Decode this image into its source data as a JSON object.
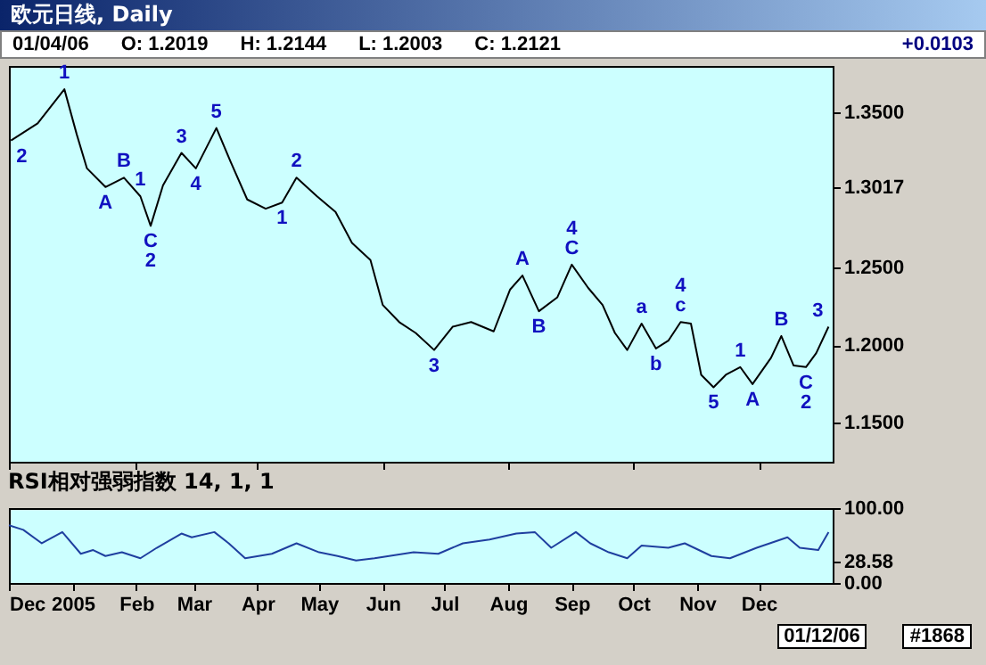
{
  "chart_data": [
    {
      "type": "line",
      "title": "欧元日线, Daily",
      "annotations": [
        "01/04/06",
        "O: 1.2019",
        "H: 1.2144",
        "L: 1.2003",
        "C: 1.2121",
        "+0.0103",
        {
          "text": "1",
          "x": "2004-12-28",
          "y": 1.365
        },
        {
          "text": "2",
          "x": "2004-12-02",
          "y": 1.332
        },
        {
          "text": "A",
          "x": "2005-01-17",
          "y": 1.302
        },
        {
          "text": "B",
          "x": "2005-01-26",
          "y": 1.308
        },
        {
          "text": "1",
          "x": "2005-02-03",
          "y": 1.296
        },
        {
          "text": "C",
          "x": "2005-02-08",
          "y": 1.277
        },
        {
          "text": "2",
          "x": "2005-02-08",
          "y": 1.277
        },
        {
          "text": "3",
          "x": "2005-02-23",
          "y": 1.324
        },
        {
          "text": "4",
          "x": "2005-03-02",
          "y": 1.314
        },
        {
          "text": "5",
          "x": "2005-03-12",
          "y": 1.34
        },
        {
          "text": "1",
          "x": "2005-04-13",
          "y": 1.292
        },
        {
          "text": "2",
          "x": "2005-04-20",
          "y": 1.308
        },
        {
          "text": "3",
          "x": "2005-06-26",
          "y": 1.197
        },
        {
          "text": "A",
          "x": "2005-08-08",
          "y": 1.245
        },
        {
          "text": "B",
          "x": "2005-08-16",
          "y": 1.222
        },
        {
          "text": "C",
          "x": "2005-09-01",
          "y": 1.252
        },
        {
          "text": "4",
          "x": "2005-09-01",
          "y": 1.252
        },
        {
          "text": "a",
          "x": "2005-10-05",
          "y": 1.214
        },
        {
          "text": "b",
          "x": "2005-10-12",
          "y": 1.198
        },
        {
          "text": "c",
          "x": "2005-10-24",
          "y": 1.215
        },
        {
          "text": "4",
          "x": "2005-10-24",
          "y": 1.215
        },
        {
          "text": "5",
          "x": "2005-11-09",
          "y": 1.173
        },
        {
          "text": "1",
          "x": "2005-11-22",
          "y": 1.186
        },
        {
          "text": "A",
          "x": "2005-11-28",
          "y": 1.175
        },
        {
          "text": "B",
          "x": "2005-12-12",
          "y": 1.206
        },
        {
          "text": "C",
          "x": "2005-12-24",
          "y": 1.186
        },
        {
          "text": "2",
          "x": "2005-12-24",
          "y": 1.186
        },
        {
          "text": "3",
          "x": "2006-01-04",
          "y": 1.212
        }
      ],
      "x": [
        "2004-12-02",
        "2004-12-15",
        "2004-12-28",
        "2005-01-03",
        "2005-01-08",
        "2005-01-17",
        "2005-01-26",
        "2005-02-03",
        "2005-02-08",
        "2005-02-14",
        "2005-02-23",
        "2005-03-02",
        "2005-03-12",
        "2005-03-19",
        "2005-03-27",
        "2005-04-05",
        "2005-04-13",
        "2005-04-20",
        "2005-04-30",
        "2005-05-09",
        "2005-05-17",
        "2005-05-26",
        "2005-06-01",
        "2005-06-09",
        "2005-06-17",
        "2005-06-26",
        "2005-07-05",
        "2005-07-14",
        "2005-07-25",
        "2005-08-02",
        "2005-08-08",
        "2005-08-16",
        "2005-08-25",
        "2005-09-01",
        "2005-09-09",
        "2005-09-16",
        "2005-09-22",
        "2005-09-28",
        "2005-10-05",
        "2005-10-12",
        "2005-10-18",
        "2005-10-24",
        "2005-10-29",
        "2005-11-03",
        "2005-11-09",
        "2005-11-15",
        "2005-11-22",
        "2005-11-28",
        "2005-12-07",
        "2005-12-12",
        "2005-12-18",
        "2005-12-24",
        "2005-12-29",
        "2006-01-04"
      ],
      "series": [
        {
          "color": "#000000",
          "values": [
            1.332,
            1.343,
            1.365,
            1.336,
            1.314,
            1.302,
            1.308,
            1.296,
            1.277,
            1.303,
            1.324,
            1.314,
            1.34,
            1.318,
            1.294,
            1.288,
            1.292,
            1.308,
            1.296,
            1.286,
            1.266,
            1.255,
            1.226,
            1.215,
            1.208,
            1.197,
            1.212,
            1.215,
            1.209,
            1.236,
            1.245,
            1.222,
            1.231,
            1.252,
            1.237,
            1.226,
            1.208,
            1.197,
            1.214,
            1.198,
            1.203,
            1.215,
            1.214,
            1.181,
            1.173,
            1.181,
            1.186,
            1.175,
            1.192,
            1.206,
            1.187,
            1.186,
            1.195,
            1.212
          ]
        }
      ],
      "xlim": [
        "2004-12-01",
        "2006-01-06"
      ],
      "xticks": [
        "2004-12-01",
        "2005-01-01",
        "2005-02-01",
        "2005-03-01",
        "2005-04-01",
        "2005-05-01",
        "2005-06-01",
        "2005-07-01",
        "2005-08-01",
        "2005-09-01",
        "2005-10-01",
        "2005-11-01",
        "2005-12-01"
      ],
      "ylim": [
        1.125,
        1.38
      ],
      "yticks": [
        {
          "value": 1.15,
          "label": "1.1500"
        },
        {
          "value": 1.2,
          "label": "1.2000"
        },
        {
          "value": 1.25,
          "label": "1.2500"
        },
        {
          "value": 1.3017,
          "label": "1.3017"
        },
        {
          "value": 1.35,
          "label": "1.3500"
        }
      ],
      "tick_labels": "y"
    },
    {
      "type": "line",
      "title": "RSI相对强弱指数 14, 1, 1",
      "annotations": [
        "01/12/06",
        "#1868"
      ],
      "x": [
        "2004-12-01",
        "2004-12-08",
        "2004-12-17",
        "2004-12-27",
        "2005-01-05",
        "2005-01-11",
        "2005-01-17",
        "2005-01-25",
        "2005-02-03",
        "2005-02-11",
        "2005-02-23",
        "2005-02-28",
        "2005-03-11",
        "2005-03-18",
        "2005-03-26",
        "2005-04-08",
        "2005-04-20",
        "2005-05-01",
        "2005-05-10",
        "2005-05-19",
        "2005-05-28",
        "2005-06-16",
        "2005-06-28",
        "2005-07-10",
        "2005-07-23",
        "2005-08-05",
        "2005-08-14",
        "2005-08-22",
        "2005-09-03",
        "2005-09-10",
        "2005-09-19",
        "2005-09-28",
        "2005-10-05",
        "2005-10-18",
        "2005-10-26",
        "2005-11-08",
        "2005-11-17",
        "2005-11-30",
        "2005-12-15",
        "2005-12-21",
        "2005-12-30",
        "2006-01-04"
      ],
      "series": [
        {
          "color": "#1f3f9f",
          "values": [
            77,
            71,
            53,
            68,
            39,
            44,
            36,
            41,
            33,
            47,
            66,
            61,
            68,
            53,
            33,
            39,
            53,
            41,
            36,
            30,
            33,
            41,
            39,
            53,
            58,
            66,
            68,
            47,
            68,
            53,
            41,
            33,
            50,
            47,
            53,
            36,
            33,
            47,
            61,
            47,
            44,
            68
          ]
        }
      ],
      "xlim": [
        "2004-12-01",
        "2006-01-06"
      ],
      "xticks": [
        {
          "value": "2004-12-01",
          "label": "Dec"
        },
        {
          "value": "2005-01-01",
          "label": "2005"
        },
        {
          "value": "2005-02-01",
          "label": "Feb"
        },
        {
          "value": "2005-03-01",
          "label": "Mar"
        },
        {
          "value": "2005-04-01",
          "label": "Apr"
        },
        {
          "value": "2005-05-01",
          "label": "May"
        },
        {
          "value": "2005-06-01",
          "label": "Jun"
        },
        {
          "value": "2005-07-01",
          "label": "Jul"
        },
        {
          "value": "2005-08-01",
          "label": "Aug"
        },
        {
          "value": "2005-09-01",
          "label": "Sep"
        },
        {
          "value": "2005-10-01",
          "label": "Oct"
        },
        {
          "value": "2005-11-01",
          "label": "Nov"
        },
        {
          "value": "2005-12-01",
          "label": "Dec"
        }
      ],
      "ylim": [
        0,
        100
      ],
      "yticks": [
        {
          "value": 0,
          "label": "0.00"
        },
        {
          "value": 28.58,
          "label": "28.58"
        },
        {
          "value": 100,
          "label": "100.00"
        }
      ]
    }
  ]
}
